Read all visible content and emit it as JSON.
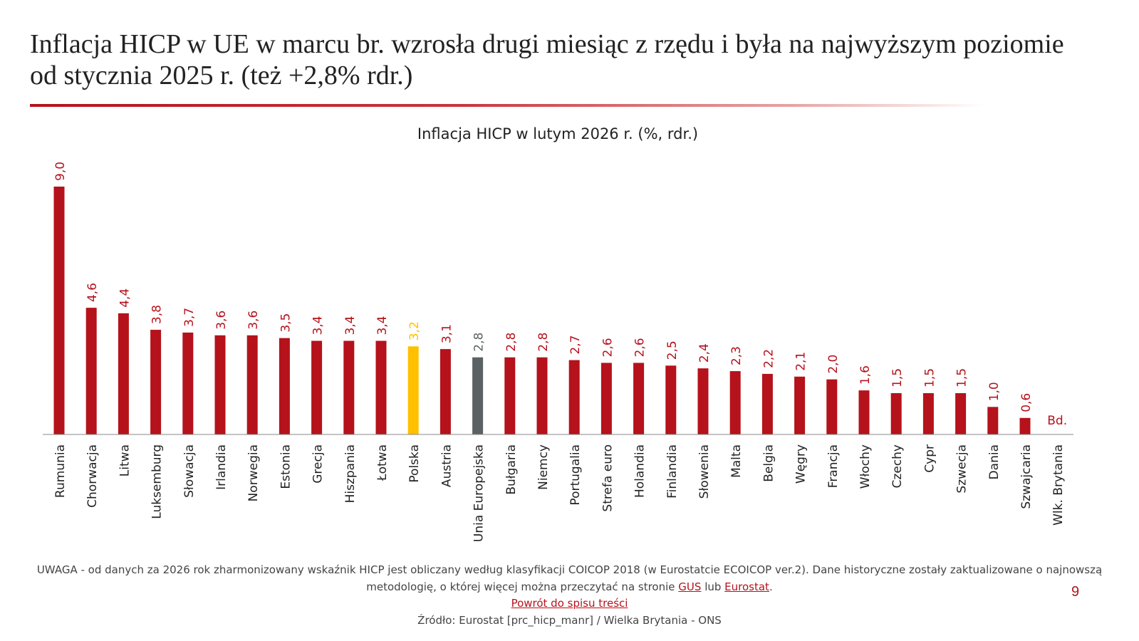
{
  "slide": {
    "title_line1": "Inflacja HICP w UE w marcu br. wzrosła drugi miesiąc z rzędu i była na najwyższym poziomie",
    "title_line2": "od stycznia 2025 r. (też +2,8% rdr.)",
    "page_number": "9"
  },
  "colors": {
    "accent": "#b5121b",
    "highlight_pl": "#ffc000",
    "highlight_eu": "#5b6264"
  },
  "chart_data": {
    "type": "bar",
    "title": "Inflacja HICP w lutym 2026 r. (%, rdr.)",
    "xlabel": "",
    "ylabel": "",
    "ylim": [
      0,
      9
    ],
    "categories": [
      "Rumunia",
      "Chorwacja",
      "Litwa",
      "Luksemburg",
      "Słowacja",
      "Irlandia",
      "Norwegia",
      "Estonia",
      "Grecja",
      "Hiszpania",
      "Łotwa",
      "Polska",
      "Austria",
      "Unia Europejska",
      "Bułgaria",
      "Niemcy",
      "Portugalia",
      "Strefa euro",
      "Holandia",
      "Finlandia",
      "Słowenia",
      "Malta",
      "Belgia",
      "Węgry",
      "Francja",
      "Włochy",
      "Czechy",
      "Cypr",
      "Szwecja",
      "Dania",
      "Szwajcaria",
      "Wlk. Brytania"
    ],
    "values": [
      9.0,
      4.6,
      4.4,
      3.8,
      3.7,
      3.6,
      3.6,
      3.5,
      3.4,
      3.4,
      3.4,
      3.2,
      3.1,
      2.8,
      2.8,
      2.8,
      2.7,
      2.6,
      2.6,
      2.5,
      2.4,
      2.3,
      2.2,
      2.1,
      2.0,
      1.6,
      1.5,
      1.5,
      1.5,
      1.0,
      0.6,
      null
    ],
    "labels": [
      "9,0",
      "4,6",
      "4,4",
      "3,8",
      "3,7",
      "3,6",
      "3,6",
      "3,5",
      "3,4",
      "3,4",
      "3,4",
      "3,2",
      "3,1",
      "2,8",
      "2,8",
      "2,8",
      "2,7",
      "2,6",
      "2,6",
      "2,5",
      "2,4",
      "2,3",
      "2,2",
      "2,1",
      "2,0",
      "1,6",
      "1,5",
      "1,5",
      "1,5",
      "1,0",
      "0,6",
      "Bd."
    ],
    "highlight": {
      "Polska": "pl",
      "Unia Europejska": "eu"
    },
    "grid": false,
    "legend": "none"
  },
  "footer": {
    "note_line1": "UWAGA - od danych za 2026 rok zharmonizowany wskaźnik HICP jest obliczany według klasyfikacji COICOP 2018 (w Eurostatcie ECOICOP ver.2). Dane historyczne zostały zaktualizowane o najnowszą",
    "note_line2_pre": "metodologię, o której więcej można przeczytać na stronie ",
    "link_gus": "GUS",
    "note_mid": " lub ",
    "link_eurostat": "Eurostat",
    "note_end": ".",
    "back_link": "Powrót do spisu treści",
    "source": "Źródło: Eurostat [prc_hicp_manr] / Wielka Brytania - ONS"
  }
}
